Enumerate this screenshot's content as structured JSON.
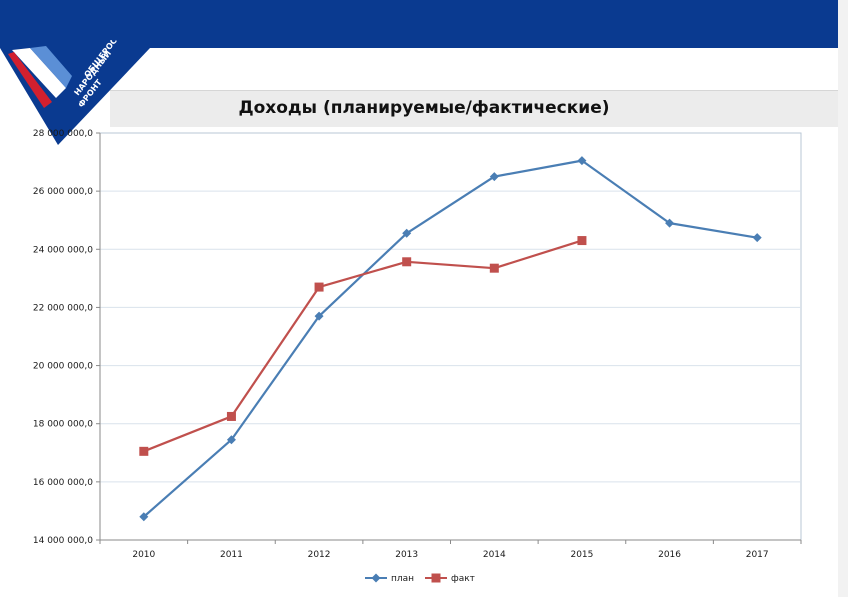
{
  "header": {
    "logo_text": "ОБЩЕРОССИЙСКИЙ НАРОДНЫЙ ФРОНТ"
  },
  "colors": {
    "header_band": "#0a3a90",
    "plan": "#4a7eb4",
    "fact": "#c0504d",
    "grid": "#d9e2ec"
  },
  "chart_data": {
    "type": "line",
    "title": "Доходы (планируемые/фактические)",
    "xlabel": "",
    "ylabel": "",
    "categories": [
      "2010",
      "2011",
      "2012",
      "2013",
      "2014",
      "2015",
      "2016",
      "2017"
    ],
    "y_tick_labels": [
      "14 000 000,0",
      "16 000 000,0",
      "18 000 000,0",
      "20 000 000,0",
      "22 000 000,0",
      "24 000 000,0",
      "26 000 000,0",
      "28 000 000,0"
    ],
    "y_ticks": [
      14000000,
      16000000,
      18000000,
      20000000,
      22000000,
      24000000,
      26000000,
      28000000
    ],
    "ylim": [
      14000000,
      28000000
    ],
    "grid": true,
    "legend_position": "bottom",
    "series": [
      {
        "name": "план",
        "marker": "diamond",
        "color": "#4a7eb4",
        "values": [
          14800000,
          17450000,
          21700000,
          24550000,
          26500000,
          27050000,
          24900000,
          24400000
        ]
      },
      {
        "name": "факт",
        "marker": "square",
        "color": "#c0504d",
        "values": [
          17050000,
          18250000,
          22700000,
          23570000,
          23350000,
          24300000,
          null,
          null
        ]
      }
    ]
  }
}
